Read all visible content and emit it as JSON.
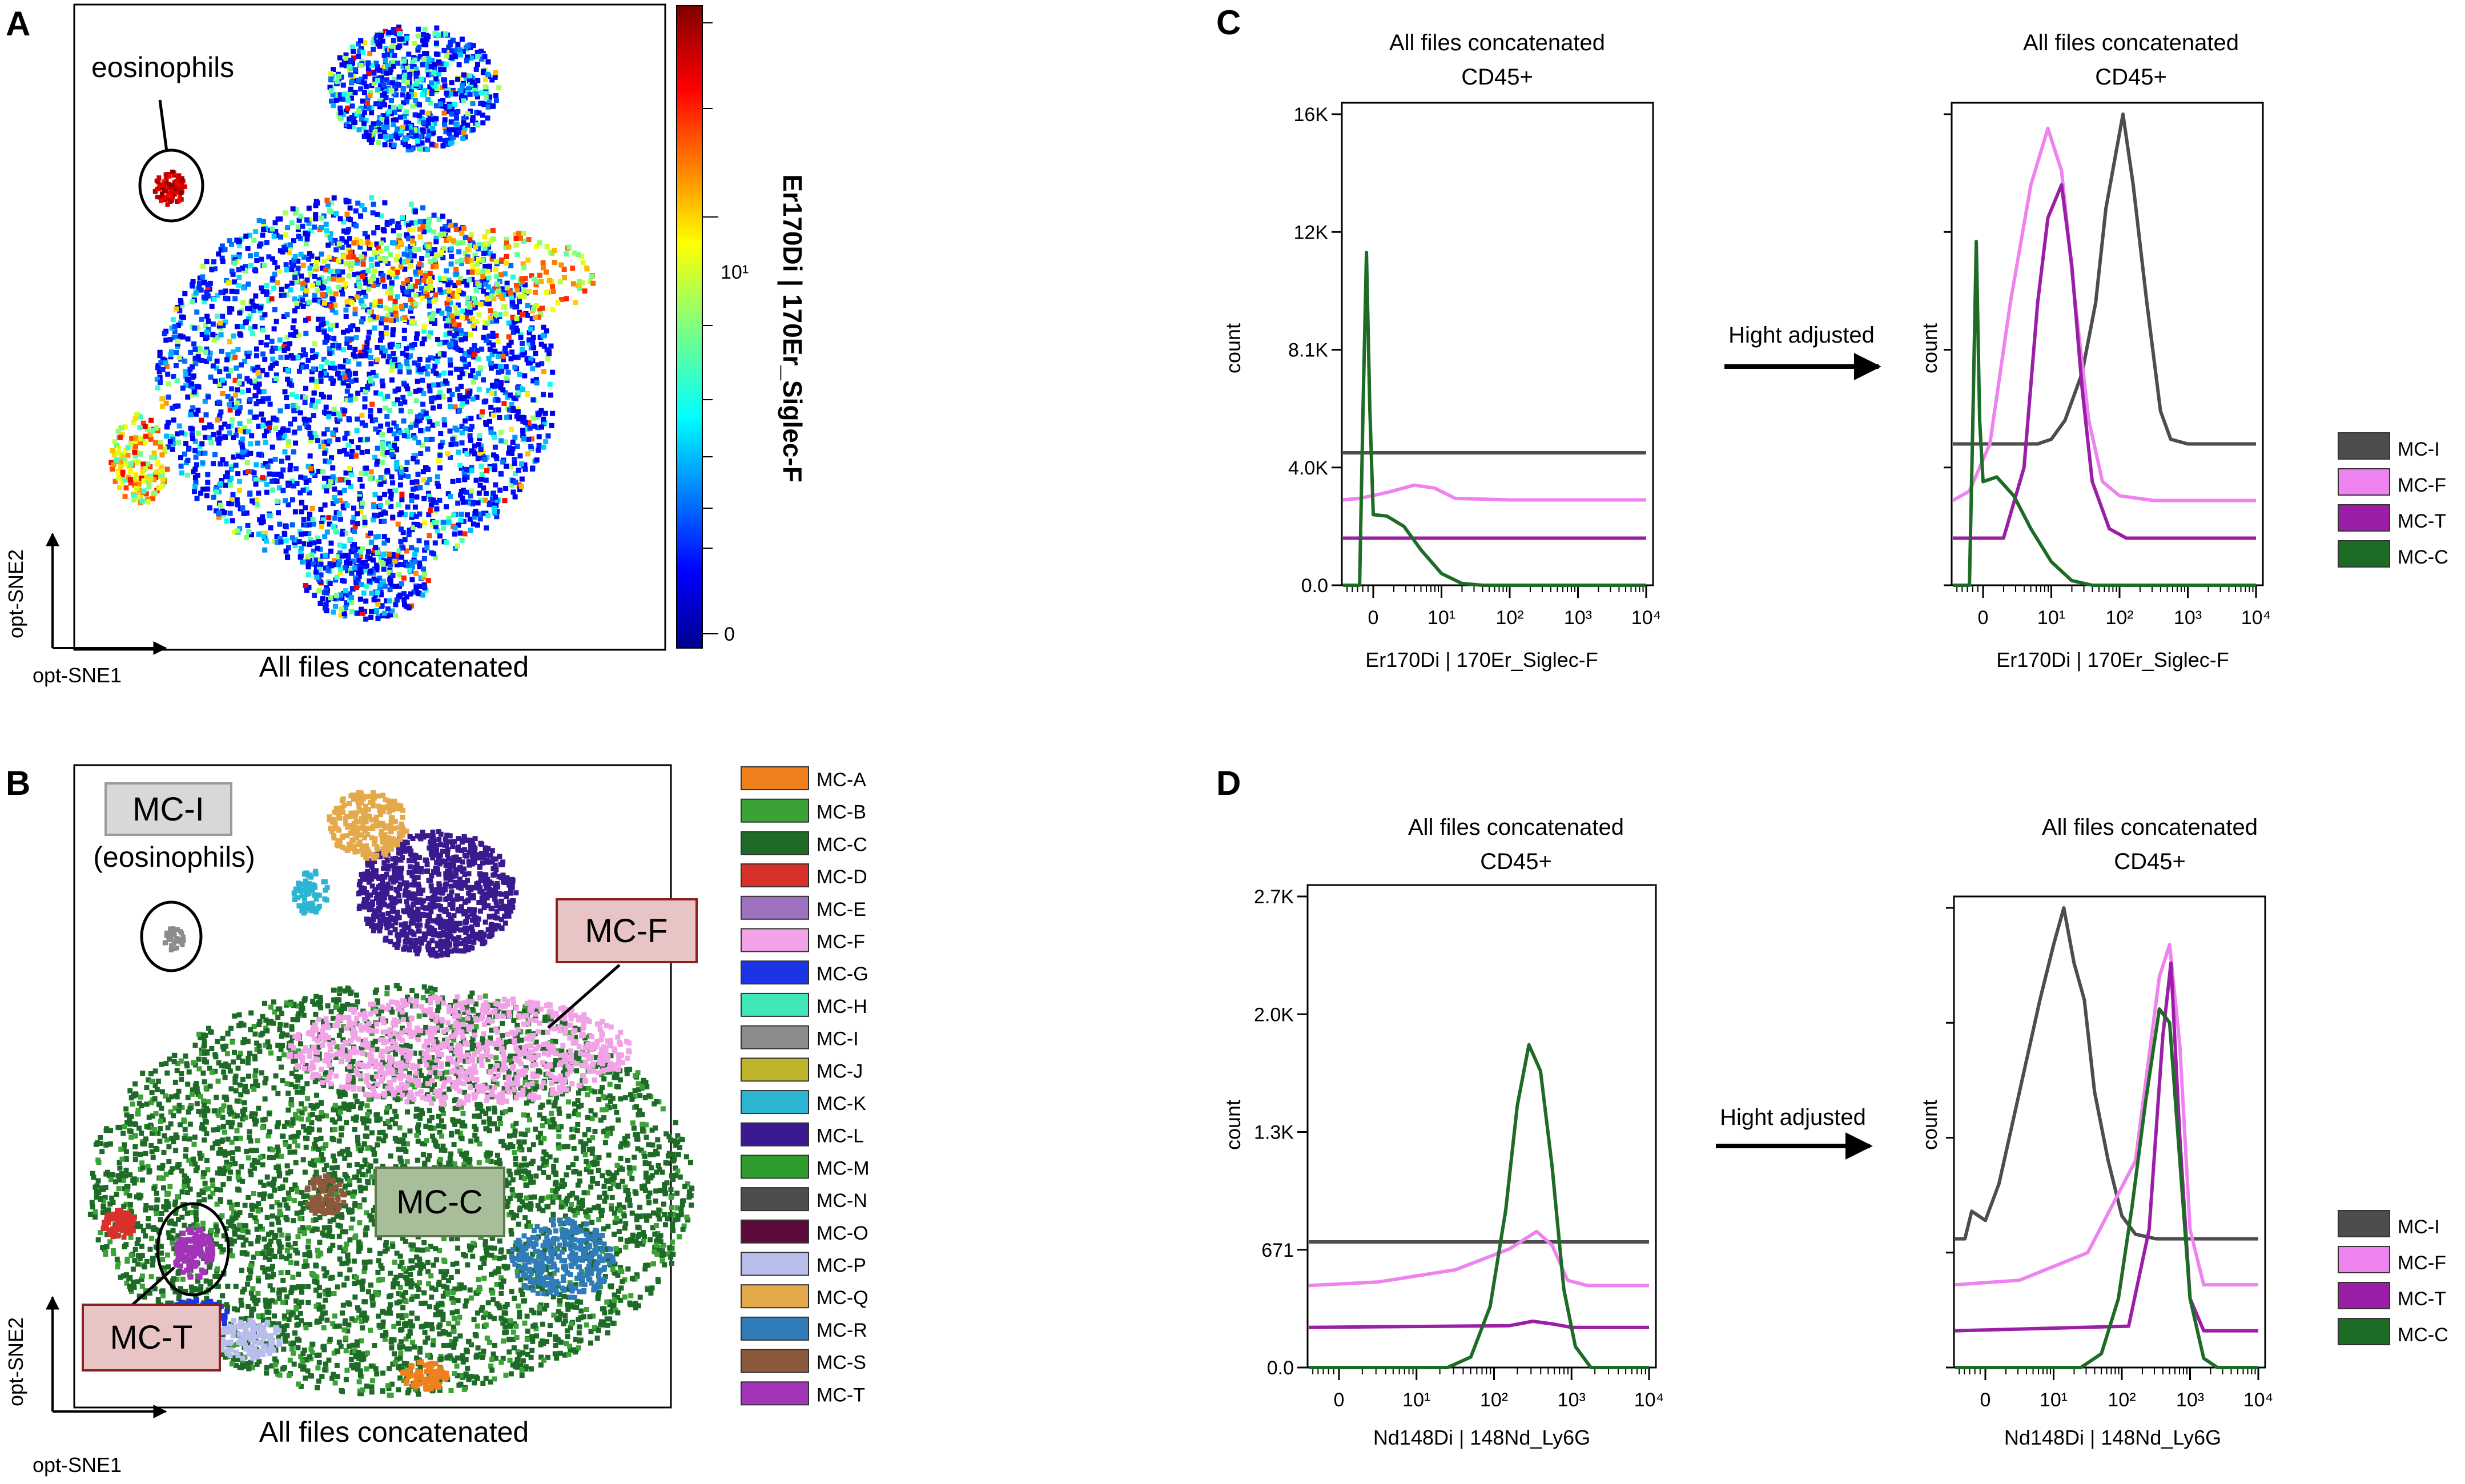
{
  "panels": {
    "a": {
      "letter": "A",
      "annotation": "eosinophils",
      "xlabel": "All files concatenated",
      "axis1": "opt-SNE1",
      "axis2": "opt-SNE2",
      "colorbar_label": "Er170Di | 170Er_Siglec-F",
      "colorbar_ticks": [
        "10¹",
        "0"
      ]
    },
    "b": {
      "letter": "B",
      "box_mci": "MC-I",
      "box_mci_sub": "(eosinophils)",
      "box_mcf": "MC-F",
      "box_mcc": "MC-C",
      "box_mct": "MC-T",
      "xlabel": "All files concatenated",
      "axis1": "opt-SNE1",
      "axis2": "opt-SNE2"
    },
    "c": {
      "letter": "C",
      "arrow_label": "Hight adjusted",
      "left": {
        "title1": "All files concatenated",
        "title2": "CD45+",
        "ylabel": "count",
        "xlabel": "Er170Di | 170Er_Siglec-F"
      },
      "right": {
        "title1": "All files concatenated",
        "title2": "CD45+",
        "ylabel": "count",
        "xlabel": "Er170Di | 170Er_Siglec-F"
      }
    },
    "d": {
      "letter": "D",
      "arrow_label": "Hight adjusted",
      "left": {
        "title1": "All files concatenated",
        "title2": "CD45+",
        "ylabel": "count",
        "xlabel": "Nd148Di | 148Nd_Ly6G"
      },
      "right": {
        "title1": "All files concatenated",
        "title2": "CD45+",
        "ylabel": "count",
        "xlabel": "Nd148Di | 148Nd_Ly6G"
      }
    }
  },
  "legend_b": [
    {
      "label": "MC-A",
      "color": "#F07F1E"
    },
    {
      "label": "MC-B",
      "color": "#3BA236"
    },
    {
      "label": "MC-C",
      "color": "#1D6B26"
    },
    {
      "label": "MC-D",
      "color": "#D9302B"
    },
    {
      "label": "MC-E",
      "color": "#9E72C0"
    },
    {
      "label": "MC-F",
      "color": "#F2A2E6"
    },
    {
      "label": "MC-G",
      "color": "#1B34E6"
    },
    {
      "label": "MC-H",
      "color": "#3EE6B8"
    },
    {
      "label": "MC-I",
      "color": "#8C8C8C"
    },
    {
      "label": "MC-J",
      "color": "#BDB42A"
    },
    {
      "label": "MC-K",
      "color": "#2CB5D3"
    },
    {
      "label": "MC-L",
      "color": "#3A1A8E"
    },
    {
      "label": "MC-M",
      "color": "#2E9C2C"
    },
    {
      "label": "MC-N",
      "color": "#4D4D4D"
    },
    {
      "label": "MC-O",
      "color": "#5C0A3A"
    },
    {
      "label": "MC-P",
      "color": "#B9BDEB"
    },
    {
      "label": "MC-Q",
      "color": "#E3A94A"
    },
    {
      "label": "MC-R",
      "color": "#2F7CB8"
    },
    {
      "label": "MC-S",
      "color": "#8B5A3C"
    },
    {
      "label": "MC-T",
      "color": "#A334B8"
    }
  ],
  "legend_cd": [
    {
      "label": "MC-I",
      "color": "#4D4D4D"
    },
    {
      "label": "MC-F",
      "color": "#EE82EE"
    },
    {
      "label": "MC-T",
      "color": "#9B1FA6"
    },
    {
      "label": "MC-C",
      "color": "#1E6B26"
    }
  ],
  "chart_data": [
    {
      "id": "C-left",
      "type": "line",
      "title": "All files concatenated / CD45+",
      "xlabel": "Er170Di | 170Er_Siglec-F",
      "ylabel": "count",
      "yticks": [
        "0.0",
        "4.0K",
        "8.1K",
        "12K",
        "16K"
      ],
      "ylim": [
        0,
        16000
      ],
      "xticks": [
        "0",
        "10¹",
        "10²",
        "10³",
        "10⁴"
      ],
      "series": [
        {
          "name": "MC-I",
          "color": "#4D4D4D",
          "points": [
            [
              -0.6,
              4500
            ],
            [
              0,
              4500
            ],
            [
              0.5,
              4500
            ],
            [
              1,
              4500
            ],
            [
              2,
              4500
            ],
            [
              3,
              4500
            ],
            [
              4,
              4500
            ]
          ]
        },
        {
          "name": "MC-F",
          "color": "#EE82EE",
          "points": [
            [
              -0.6,
              2900
            ],
            [
              -0.2,
              2950
            ],
            [
              0.2,
              3150
            ],
            [
              0.6,
              3400
            ],
            [
              0.9,
              3300
            ],
            [
              1.2,
              2950
            ],
            [
              2,
              2900
            ],
            [
              3,
              2900
            ],
            [
              4,
              2900
            ]
          ]
        },
        {
          "name": "MC-T",
          "color": "#9B1FA6",
          "points": [
            [
              -0.6,
              1600
            ],
            [
              4,
              1600
            ]
          ]
        },
        {
          "name": "MC-C",
          "color": "#1E6B26",
          "points": [
            [
              -0.6,
              0
            ],
            [
              -0.2,
              0
            ],
            [
              -0.15,
              6000
            ],
            [
              -0.1,
              11300
            ],
            [
              -0.05,
              6000
            ],
            [
              0,
              2400
            ],
            [
              0.2,
              2350
            ],
            [
              0.45,
              2000
            ],
            [
              0.7,
              1200
            ],
            [
              1,
              400
            ],
            [
              1.3,
              60
            ],
            [
              1.6,
              0
            ],
            [
              4,
              0
            ]
          ]
        }
      ]
    },
    {
      "id": "C-right",
      "type": "line",
      "title": "All files concatenated / CD45+",
      "xlabel": "Er170Di | 170Er_Siglec-F",
      "ylabel": "count",
      "xticks": [
        "0",
        "10¹",
        "10²",
        "10³",
        "10⁴"
      ],
      "series": [
        {
          "name": "MC-I",
          "color": "#4D4D4D",
          "points": [
            [
              -0.6,
              0.3
            ],
            [
              0.8,
              0.3
            ],
            [
              1.0,
              0.31
            ],
            [
              1.2,
              0.35
            ],
            [
              1.45,
              0.45
            ],
            [
              1.65,
              0.6
            ],
            [
              1.8,
              0.8
            ],
            [
              1.95,
              0.92
            ],
            [
              2.05,
              1.0
            ],
            [
              2.2,
              0.85
            ],
            [
              2.4,
              0.6
            ],
            [
              2.6,
              0.37
            ],
            [
              2.75,
              0.31
            ],
            [
              3.0,
              0.3
            ],
            [
              4,
              0.3
            ]
          ]
        },
        {
          "name": "MC-F",
          "color": "#EE82EE",
          "points": [
            [
              -0.6,
              0.18
            ],
            [
              -0.2,
              0.2
            ],
            [
              0.1,
              0.3
            ],
            [
              0.4,
              0.6
            ],
            [
              0.7,
              0.85
            ],
            [
              0.95,
              0.97
            ],
            [
              1.15,
              0.88
            ],
            [
              1.35,
              0.6
            ],
            [
              1.55,
              0.35
            ],
            [
              1.75,
              0.22
            ],
            [
              2.0,
              0.19
            ],
            [
              2.5,
              0.18
            ],
            [
              4,
              0.18
            ]
          ]
        },
        {
          "name": "MC-T",
          "color": "#9B1FA6",
          "points": [
            [
              -0.6,
              0.1
            ],
            [
              0.3,
              0.1
            ],
            [
              0.6,
              0.25
            ],
            [
              0.8,
              0.6
            ],
            [
              0.95,
              0.78
            ],
            [
              1.15,
              0.85
            ],
            [
              1.3,
              0.68
            ],
            [
              1.45,
              0.42
            ],
            [
              1.6,
              0.22
            ],
            [
              1.85,
              0.12
            ],
            [
              2.1,
              0.1
            ],
            [
              4,
              0.1
            ]
          ]
        },
        {
          "name": "MC-C",
          "color": "#1E6B26",
          "points": [
            [
              -0.6,
              0
            ],
            [
              -0.2,
              0
            ],
            [
              -0.15,
              0.35
            ],
            [
              -0.1,
              0.73
            ],
            [
              -0.05,
              0.35
            ],
            [
              0,
              0.22
            ],
            [
              0.2,
              0.23
            ],
            [
              0.45,
              0.19
            ],
            [
              0.7,
              0.12
            ],
            [
              1,
              0.05
            ],
            [
              1.3,
              0.01
            ],
            [
              1.6,
              0
            ],
            [
              4,
              0
            ]
          ]
        }
      ]
    },
    {
      "id": "D-left",
      "type": "line",
      "title": "All files concatenated / CD45+",
      "xlabel": "Nd148Di | 148Nd_Ly6G",
      "ylabel": "count",
      "yticks": [
        "0.0",
        "671",
        "1.3K",
        "2.0K",
        "2.7K"
      ],
      "ylim": [
        0,
        2700
      ],
      "xticks": [
        "0",
        "10¹",
        "10²",
        "10³",
        "10⁴"
      ],
      "series": [
        {
          "name": "MC-I",
          "color": "#4D4D4D",
          "points": [
            [
              -0.9,
              720
            ],
            [
              4,
              720
            ]
          ]
        },
        {
          "name": "MC-F",
          "color": "#EE82EE",
          "points": [
            [
              -0.9,
              470
            ],
            [
              0.5,
              490
            ],
            [
              1.5,
              560
            ],
            [
              2.2,
              680
            ],
            [
              2.55,
              780
            ],
            [
              2.75,
              700
            ],
            [
              2.95,
              500
            ],
            [
              3.2,
              470
            ],
            [
              4,
              470
            ]
          ]
        },
        {
          "name": "MC-T",
          "color": "#9B1FA6",
          "points": [
            [
              -0.9,
              230
            ],
            [
              2.2,
              240
            ],
            [
              2.5,
              265
            ],
            [
              2.75,
              250
            ],
            [
              3.0,
              230
            ],
            [
              4,
              230
            ]
          ]
        },
        {
          "name": "MC-C",
          "color": "#1E6B26",
          "points": [
            [
              -0.9,
              0
            ],
            [
              1.4,
              0
            ],
            [
              1.7,
              60
            ],
            [
              1.95,
              350
            ],
            [
              2.15,
              900
            ],
            [
              2.3,
              1500
            ],
            [
              2.45,
              1850
            ],
            [
              2.6,
              1700
            ],
            [
              2.75,
              1150
            ],
            [
              2.9,
              450
            ],
            [
              3.05,
              120
            ],
            [
              3.25,
              0
            ],
            [
              4,
              0
            ]
          ]
        }
      ]
    },
    {
      "id": "D-right",
      "type": "line",
      "title": "All files concatenated / CD45+",
      "xlabel": "Nd148Di | 148Nd_Ly6G",
      "ylabel": "count",
      "xticks": [
        "0",
        "10¹",
        "10²",
        "10³",
        "10⁴"
      ],
      "series": [
        {
          "name": "MC-I",
          "color": "#4D4D4D",
          "points": [
            [
              -0.9,
              0.28
            ],
            [
              -0.3,
              0.28
            ],
            [
              -0.2,
              0.34
            ],
            [
              0,
              0.32
            ],
            [
              0.2,
              0.4
            ],
            [
              0.5,
              0.6
            ],
            [
              0.8,
              0.8
            ],
            [
              1.0,
              0.92
            ],
            [
              1.15,
              1.0
            ],
            [
              1.3,
              0.88
            ],
            [
              1.45,
              0.8
            ],
            [
              1.6,
              0.6
            ],
            [
              1.8,
              0.45
            ],
            [
              2.0,
              0.33
            ],
            [
              2.2,
              0.29
            ],
            [
              2.5,
              0.28
            ],
            [
              4,
              0.28
            ]
          ]
        },
        {
          "name": "MC-F",
          "color": "#EE82EE",
          "points": [
            [
              -0.9,
              0.18
            ],
            [
              0.5,
              0.19
            ],
            [
              1.5,
              0.25
            ],
            [
              2.2,
              0.45
            ],
            [
              2.55,
              0.85
            ],
            [
              2.7,
              0.92
            ],
            [
              2.85,
              0.7
            ],
            [
              3.0,
              0.3
            ],
            [
              3.2,
              0.18
            ],
            [
              4,
              0.18
            ]
          ]
        },
        {
          "name": "MC-T",
          "color": "#9B1FA6",
          "points": [
            [
              -0.9,
              0.08
            ],
            [
              2.1,
              0.09
            ],
            [
              2.4,
              0.3
            ],
            [
              2.6,
              0.72
            ],
            [
              2.72,
              0.88
            ],
            [
              2.85,
              0.5
            ],
            [
              3.0,
              0.15
            ],
            [
              3.2,
              0.08
            ],
            [
              4,
              0.08
            ]
          ]
        },
        {
          "name": "MC-C",
          "color": "#1E6B26",
          "points": [
            [
              -0.9,
              0
            ],
            [
              1.4,
              0
            ],
            [
              1.7,
              0.03
            ],
            [
              1.95,
              0.15
            ],
            [
              2.15,
              0.35
            ],
            [
              2.35,
              0.58
            ],
            [
              2.55,
              0.78
            ],
            [
              2.7,
              0.75
            ],
            [
              2.85,
              0.45
            ],
            [
              3.0,
              0.15
            ],
            [
              3.2,
              0.02
            ],
            [
              3.4,
              0
            ],
            [
              4,
              0
            ]
          ]
        }
      ]
    }
  ]
}
